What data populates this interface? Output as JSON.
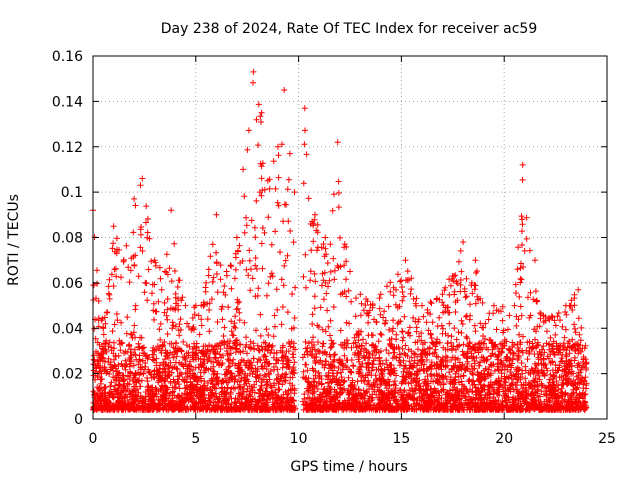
{
  "chart_data": {
    "type": "scatter",
    "title": "Day 238 of 2024, Rate Of TEC Index for receiver ac59",
    "xlabel": "GPS time / hours",
    "ylabel": "ROTI / TECUs",
    "xlim": [
      0,
      25
    ],
    "ylim": [
      0,
      0.16
    ],
    "x_ticks": [
      0,
      5,
      10,
      15,
      20,
      25
    ],
    "y_ticks": [
      0,
      0.02,
      0.04,
      0.06,
      0.08,
      0.1,
      0.12,
      0.14,
      0.16
    ],
    "x_tick_labels": [
      "0",
      "5",
      "10",
      "15",
      "20",
      "25"
    ],
    "y_tick_labels": [
      "0",
      "0.02",
      "0.04",
      "0.06",
      "0.08",
      "0.1",
      "0.12",
      "0.14",
      "0.16"
    ],
    "grid": true,
    "marker": "+",
    "marker_color": "#ff0000",
    "data_gap_hours": [
      9.85,
      10.2
    ],
    "envelope": [
      {
        "x": 0.0,
        "y": 0.092
      },
      {
        "x": 0.5,
        "y": 0.04
      },
      {
        "x": 1.0,
        "y": 0.085
      },
      {
        "x": 1.5,
        "y": 0.07
      },
      {
        "x": 2.0,
        "y": 0.097
      },
      {
        "x": 2.4,
        "y": 0.106
      },
      {
        "x": 3.0,
        "y": 0.07
      },
      {
        "x": 3.5,
        "y": 0.065
      },
      {
        "x": 3.8,
        "y": 0.092
      },
      {
        "x": 4.5,
        "y": 0.05
      },
      {
        "x": 5.0,
        "y": 0.05
      },
      {
        "x": 5.5,
        "y": 0.06
      },
      {
        "x": 6.0,
        "y": 0.09
      },
      {
        "x": 6.5,
        "y": 0.065
      },
      {
        "x": 7.0,
        "y": 0.08
      },
      {
        "x": 7.3,
        "y": 0.11
      },
      {
        "x": 7.8,
        "y": 0.153
      },
      {
        "x": 8.2,
        "y": 0.135
      },
      {
        "x": 8.5,
        "y": 0.105
      },
      {
        "x": 9.0,
        "y": 0.12
      },
      {
        "x": 9.3,
        "y": 0.145
      },
      {
        "x": 9.8,
        "y": 0.1
      },
      {
        "x": 10.3,
        "y": 0.137
      },
      {
        "x": 10.8,
        "y": 0.09
      },
      {
        "x": 11.3,
        "y": 0.08
      },
      {
        "x": 11.9,
        "y": 0.122
      },
      {
        "x": 12.5,
        "y": 0.065
      },
      {
        "x": 13.0,
        "y": 0.055
      },
      {
        "x": 14.0,
        "y": 0.055
      },
      {
        "x": 15.2,
        "y": 0.07
      },
      {
        "x": 16.0,
        "y": 0.05
      },
      {
        "x": 17.0,
        "y": 0.055
      },
      {
        "x": 18.0,
        "y": 0.078
      },
      {
        "x": 18.6,
        "y": 0.07
      },
      {
        "x": 19.5,
        "y": 0.05
      },
      {
        "x": 20.5,
        "y": 0.05
      },
      {
        "x": 20.9,
        "y": 0.112
      },
      {
        "x": 21.5,
        "y": 0.07
      },
      {
        "x": 22.0,
        "y": 0.045
      },
      {
        "x": 23.0,
        "y": 0.05
      },
      {
        "x": 23.6,
        "y": 0.057
      },
      {
        "x": 24.0,
        "y": 0.025
      }
    ]
  }
}
